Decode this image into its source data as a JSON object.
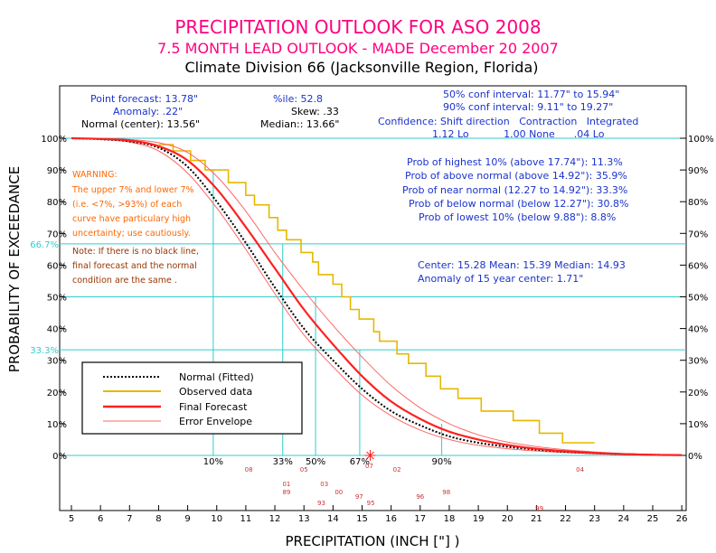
{
  "header": {
    "title": "PRECIPITATION OUTLOOK FOR ASO 2008",
    "subtitle": "7.5 MONTH LEAD OUTLOOK  - MADE December 20 2007",
    "division": "Climate Division 66 (Jacksonville Region, Florida)"
  },
  "stats": {
    "point_forecast": "Point forecast: 13.78\"",
    "anomaly": "Anomaly: .22\"",
    "normal_center": "Normal (center): 13.56\"",
    "percentile": "%ile:  52.8",
    "skew": "Skew:  .33",
    "median": "Median:: 13.66\"",
    "conf50": "50% conf interval: 11.77\" to 15.94\"",
    "conf90": "90% conf interval: 9.11\" to 19.27\"",
    "confidence_header": "Confidence: Shift direction   Contraction   Integrated",
    "confidence_values": "1.12 Lo           1.00 None      .04 Lo"
  },
  "probabilities": {
    "highest10": "Prob of highest 10% (above 17.74\"): 11.3%",
    "above": "Prob of above normal (above 14.92\"): 35.9%",
    "near": "Prob of near normal (12.27 to 14.92\"): 33.3%",
    "below": "Prob of below normal (below 12.27\"): 30.8%",
    "lowest10": "Prob of lowest 10% (below 9.88\"): 8.8%",
    "center_mean_median": "Center: 15.28 Mean: 15.39 Median: 14.93",
    "anomaly15": "Anomaly of 15 year center: 1.71\""
  },
  "warning": {
    "line1": "WARNING:",
    "line2": "The upper 7% and lower 7%",
    "line3": "(i.e. <7%, >93%) of each",
    "line4": "curve have particulary high",
    "line5": "uncertainty; use cautiously."
  },
  "note": {
    "line1": "Note: If there is no black line,",
    "line2": "final forecast and the normal",
    "line3": "condition are the same ."
  },
  "legend": {
    "normal": "Normal (Fitted)",
    "observed": "Observed data",
    "final": "Final Forecast",
    "envelope": "Error Envelope"
  },
  "colors": {
    "title": "#ff0080",
    "blue_text": "#1a33cc",
    "cyan": "#33cccc",
    "orange": "#ff6600",
    "observed": "#e6b800",
    "forecast": "#ff2020",
    "brown": "#993300",
    "year_red": "#cc3333"
  },
  "chart_data": {
    "type": "line",
    "title": "PRECIPITATION OUTLOOK FOR ASO 2008",
    "xlabel": "PRECIPITATION (INCH [\"] )",
    "ylabel": "PROBABILITY OF EXCEEDANCE",
    "xlim": [
      5,
      26
    ],
    "ylim": [
      0,
      100
    ],
    "x_ticks": [
      5,
      6,
      7,
      8,
      9,
      10,
      11,
      12,
      13,
      14,
      15,
      16,
      17,
      18,
      19,
      20,
      21,
      22,
      23,
      24,
      25,
      26
    ],
    "y_ticks_left": [
      "0%",
      "10%",
      "20%",
      "30%",
      "40%",
      "50%",
      "60%",
      "70%",
      "80%",
      "90%",
      "100%"
    ],
    "y_ticks_right": [
      "0%",
      "10%",
      "20%",
      "30%",
      "40%",
      "50%",
      "60%",
      "70%",
      "80%",
      "90%",
      "100%"
    ],
    "tercile_labels": [
      {
        "label": "66.7%",
        "y": 66.7
      },
      {
        "label": "33.3%",
        "y": 33.3
      }
    ],
    "percentile_labels": [
      {
        "label": "10%",
        "x": 9.88
      },
      {
        "label": "33%",
        "x": 12.27
      },
      {
        "label": "50%",
        "x": 13.4
      },
      {
        "label": "67%",
        "x": 14.92
      },
      {
        "label": "90%",
        "x": 17.74
      }
    ],
    "forecast_marker": {
      "x": 15.28,
      "y": 0
    },
    "forecast_marker_label": "07",
    "normal_fitted": {
      "x": [
        5,
        6,
        7,
        8,
        9,
        10,
        11,
        12,
        13,
        14,
        15,
        16,
        17,
        18,
        19,
        20,
        21,
        22,
        23,
        24,
        25,
        26
      ],
      "y": [
        100,
        99.7,
        99,
        97,
        91,
        80,
        67,
        53,
        40,
        30,
        21,
        14,
        9.5,
        6,
        4,
        2.7,
        1.8,
        1.1,
        0.7,
        0.4,
        0.2,
        0.1
      ]
    },
    "final_forecast": {
      "x": [
        5,
        6,
        7,
        8,
        9,
        10,
        11,
        12,
        13,
        14,
        15,
        16,
        17,
        18,
        19,
        20,
        21,
        22,
        23,
        24,
        25,
        26
      ],
      "y": [
        100,
        99.8,
        99.3,
        97.5,
        93,
        84,
        72,
        59,
        46,
        35,
        25,
        17,
        11.5,
        7.5,
        5,
        3.3,
        2.1,
        1.3,
        0.8,
        0.4,
        0.2,
        0.1
      ]
    },
    "error_upper": {
      "x": [
        5,
        6,
        7,
        8,
        9,
        10,
        11,
        12,
        13,
        14,
        15,
        16,
        17,
        18,
        19,
        20,
        21,
        22,
        23,
        24,
        25,
        26
      ],
      "y": [
        100,
        99.9,
        99.6,
        98.6,
        95.5,
        88,
        77,
        64,
        52,
        41,
        31,
        22,
        15,
        10,
        6.5,
        4.2,
        2.8,
        1.8,
        1.1,
        0.6,
        0.3,
        0.1
      ]
    },
    "error_lower": {
      "x": [
        5,
        6,
        7,
        8,
        9,
        10,
        11,
        12,
        13,
        14,
        15,
        16,
        17,
        18,
        19,
        20,
        21,
        22,
        23,
        24,
        25,
        26
      ],
      "y": [
        100,
        99.6,
        98.8,
        96,
        89,
        78,
        65,
        51,
        38,
        28,
        19,
        12.5,
        8,
        5,
        3.2,
        2.1,
        1.4,
        0.9,
        0.5,
        0.3,
        0.1,
        0.05
      ]
    },
    "observed_steps": {
      "x": [
        8.5,
        9.1,
        9.6,
        10.4,
        11.0,
        11.3,
        11.8,
        12.1,
        12.4,
        12.9,
        13.3,
        13.5,
        14.0,
        14.3,
        14.6,
        14.9,
        15.4,
        15.6,
        16.2,
        16.6,
        17.2,
        17.7,
        18.3,
        19.1,
        20.2,
        21.1,
        21.9
      ],
      "y": [
        96,
        93,
        90,
        86,
        82,
        79,
        75,
        71,
        68,
        64,
        61,
        57,
        54,
        50,
        46,
        43,
        39,
        36,
        32,
        29,
        25,
        21,
        18,
        14,
        11,
        7,
        4
      ]
    },
    "year_labels": [
      {
        "label": "08",
        "x": 11.1,
        "row": 0
      },
      {
        "label": "05",
        "x": 13.0,
        "row": 0
      },
      {
        "label": "02",
        "x": 16.2,
        "row": 0
      },
      {
        "label": "04",
        "x": 22.5,
        "row": 0
      },
      {
        "label": "03",
        "x": 13.7,
        "row": 1
      },
      {
        "label": "01",
        "x": 12.4,
        "row": 1
      },
      {
        "label": "89",
        "x": 12.4,
        "row": 2
      },
      {
        "label": "00",
        "x": 14.2,
        "row": 2
      },
      {
        "label": "98",
        "x": 17.9,
        "row": 2
      },
      {
        "label": "97",
        "x": 14.9,
        "row": 3
      },
      {
        "label": "96",
        "x": 17.0,
        "row": 3
      },
      {
        "label": "95",
        "x": 15.3,
        "row": 4
      },
      {
        "label": "93",
        "x": 13.6,
        "row": 4
      },
      {
        "label": "99",
        "x": 21.1,
        "row": 5
      }
    ]
  }
}
